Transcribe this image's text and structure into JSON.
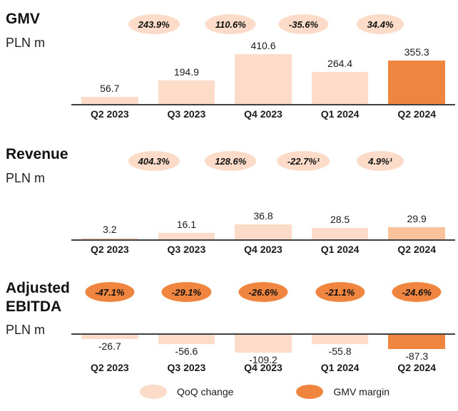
{
  "colors": {
    "light": "#fcdcc8",
    "medium": "#f9c29b",
    "dark": "#f0853f"
  },
  "legend": {
    "qoq": "QoQ change",
    "margin": "GMV margin"
  },
  "chart_data": [
    {
      "type": "bar",
      "title": "GMV",
      "unit": "PLN m",
      "categories": [
        "Q2 2023",
        "Q3 2023",
        "Q4 2023",
        "Q1 2024",
        "Q2 2024"
      ],
      "values": [
        56.7,
        194.9,
        410.6,
        264.4,
        355.3
      ],
      "bar_styles": [
        "light",
        "light",
        "light",
        "light",
        "dark"
      ],
      "qoq_badges": [
        "243.9%",
        "110.6%",
        "-35.6%",
        "34.4%"
      ],
      "legend_note": "light ovals between bars show quarter-over-quarter change"
    },
    {
      "type": "bar",
      "title": "Revenue",
      "unit": "PLN m",
      "categories": [
        "Q2 2023",
        "Q3 2023",
        "Q4 2023",
        "Q1 2024",
        "Q2 2024"
      ],
      "values": [
        3.2,
        16.1,
        36.8,
        28.5,
        29.9
      ],
      "bar_styles": [
        "light",
        "light",
        "light",
        "light",
        "medium"
      ],
      "qoq_badges": [
        "404.3%",
        "128.6%",
        "-22.7%¹",
        "4.9%¹"
      ],
      "legend_note": "light ovals between bars show quarter-over-quarter change"
    },
    {
      "type": "bar",
      "title": "Adjusted EBITDA",
      "unit": "PLN m",
      "categories": [
        "Q2 2023",
        "Q3 2023",
        "Q4 2023",
        "Q1 2024",
        "Q2 2024"
      ],
      "values": [
        -26.7,
        -56.6,
        -109.2,
        -55.8,
        -87.3
      ],
      "bar_styles": [
        "light",
        "light",
        "light",
        "light",
        "dark"
      ],
      "margin_badges": [
        "-47.1%",
        "-29.1%",
        "-26.6%",
        "-21.1%",
        "-24.6%"
      ],
      "legend_note": "dark ovals above bars show GMV margin"
    }
  ]
}
